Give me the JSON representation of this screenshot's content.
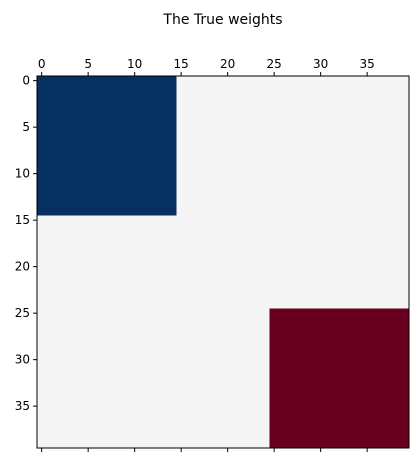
{
  "chart_data": {
    "type": "heatmap",
    "title": "The True weights",
    "xlabel": "",
    "ylabel": "",
    "nrows": 40,
    "ncols": 40,
    "xlim": [
      -0.5,
      39.5
    ],
    "ylim": [
      39.5,
      -0.5
    ],
    "x_ticks": [
      0,
      5,
      10,
      15,
      20,
      25,
      30,
      35
    ],
    "y_ticks": [
      0,
      5,
      10,
      15,
      20,
      25,
      30,
      35
    ],
    "x_tick_labels": [
      "0",
      "5",
      "10",
      "15",
      "20",
      "25",
      "30",
      "35"
    ],
    "y_tick_labels": [
      "0",
      "5",
      "10",
      "15",
      "20",
      "25",
      "30",
      "35"
    ],
    "x_tick_position": "top and bottom (labels on top)",
    "grid": false,
    "colormap": "RdBu",
    "background_value": 0,
    "blocks": [
      {
        "rows": [
          0,
          14
        ],
        "cols": [
          0,
          14
        ],
        "value": "max",
        "color": "#053061"
      },
      {
        "rows": [
          25,
          39
        ],
        "cols": [
          25,
          39
        ],
        "value": "min",
        "color": "#67001f"
      }
    ],
    "colors": {
      "background": "#f5f5f5",
      "frame": "#000000"
    }
  }
}
